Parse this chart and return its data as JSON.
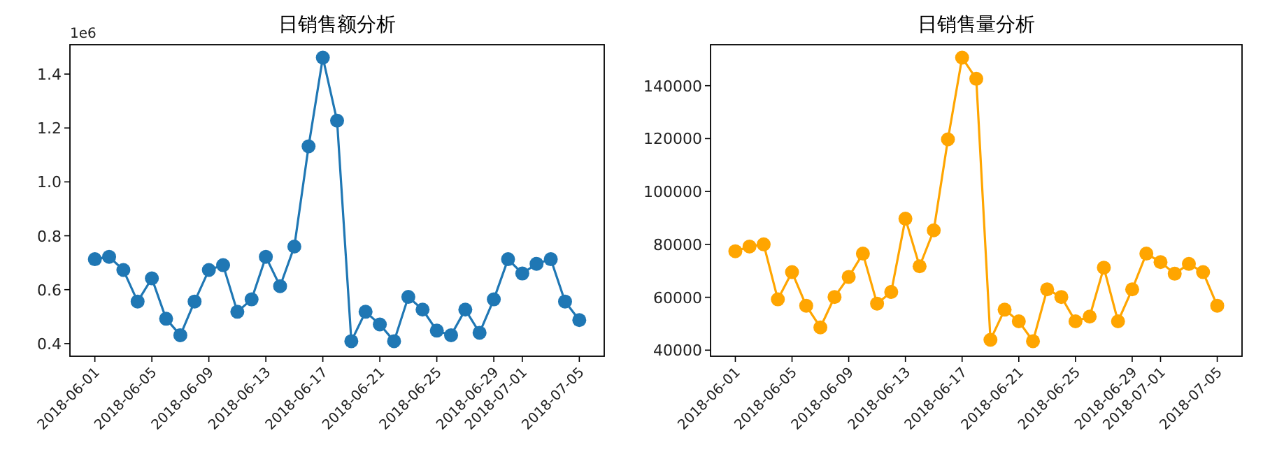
{
  "chart_data": [
    {
      "type": "line",
      "title": "日销售额分析",
      "marker": "circle",
      "color": "#1f77b4",
      "annotations": [
        "1e6"
      ],
      "x": [
        "2018-06-01",
        "2018-06-02",
        "2018-06-03",
        "2018-06-04",
        "2018-06-05",
        "2018-06-06",
        "2018-06-07",
        "2018-06-08",
        "2018-06-09",
        "2018-06-10",
        "2018-06-11",
        "2018-06-12",
        "2018-06-13",
        "2018-06-14",
        "2018-06-15",
        "2018-06-16",
        "2018-06-17",
        "2018-06-18",
        "2018-06-19",
        "2018-06-20",
        "2018-06-21",
        "2018-06-22",
        "2018-06-23",
        "2018-06-24",
        "2018-06-25",
        "2018-06-26",
        "2018-06-27",
        "2018-06-28",
        "2018-06-29",
        "2018-06-30",
        "2018-07-01",
        "2018-07-02",
        "2018-07-03",
        "2018-07-04",
        "2018-07-05"
      ],
      "values": [
        0.713,
        0.722,
        0.673,
        0.556,
        0.642,
        0.492,
        0.431,
        0.556,
        0.673,
        0.691,
        0.518,
        0.564,
        0.722,
        0.613,
        0.76,
        1.132,
        1.461,
        1.227,
        0.409,
        0.518,
        0.471,
        0.409,
        0.573,
        0.526,
        0.448,
        0.431,
        0.526,
        0.44,
        0.564,
        0.713,
        0.66,
        0.696,
        0.713,
        0.556,
        0.487
      ],
      "xlim": [
        "2018-05-30T06:00",
        "2018-07-06T18:00"
      ],
      "xticks": [
        "2018-06-01",
        "2018-06-05",
        "2018-06-09",
        "2018-06-13",
        "2018-06-17",
        "2018-06-21",
        "2018-06-25",
        "2018-06-29",
        "2018-07-01",
        "2018-07-05"
      ],
      "ylim": [
        0.353,
        1.509
      ],
      "yticks": [
        0.4,
        0.6,
        0.8,
        {
          "value": 1,
          "label": "1.0"
        },
        1.2,
        1.4
      ]
    },
    {
      "type": "line",
      "title": "日销售量分析",
      "marker": "circle",
      "color": "#ffa500",
      "x": [
        "2018-06-01",
        "2018-06-02",
        "2018-06-03",
        "2018-06-04",
        "2018-06-05",
        "2018-06-06",
        "2018-06-07",
        "2018-06-08",
        "2018-06-09",
        "2018-06-10",
        "2018-06-11",
        "2018-06-12",
        "2018-06-13",
        "2018-06-14",
        "2018-06-15",
        "2018-06-16",
        "2018-06-17",
        "2018-06-18",
        "2018-06-19",
        "2018-06-20",
        "2018-06-21",
        "2018-06-22",
        "2018-06-23",
        "2018-06-24",
        "2018-06-25",
        "2018-06-26",
        "2018-06-27",
        "2018-06-28",
        "2018-06-29",
        "2018-06-30",
        "2018-07-01",
        "2018-07-02",
        "2018-07-03",
        "2018-07-04",
        "2018-07-05"
      ],
      "values": [
        77400,
        79200,
        80000,
        59200,
        69500,
        56800,
        48600,
        60100,
        67700,
        76500,
        57600,
        62000,
        89700,
        71700,
        85300,
        119700,
        150600,
        142600,
        43900,
        55300,
        50900,
        43400,
        63000,
        60100,
        50900,
        52700,
        71200,
        50900,
        63000,
        76500,
        73300,
        68900,
        72600,
        69500,
        56800
      ],
      "xlim": [
        "2018-05-30T06:00",
        "2018-07-06T18:00"
      ],
      "xticks": [
        "2018-06-01",
        "2018-06-05",
        "2018-06-09",
        "2018-06-13",
        "2018-06-17",
        "2018-06-21",
        "2018-06-25",
        "2018-06-29",
        "2018-07-01",
        "2018-07-05"
      ],
      "ylim": [
        37700,
        155500
      ],
      "yticks": [
        40000,
        60000,
        80000,
        100000,
        120000,
        140000
      ]
    }
  ]
}
